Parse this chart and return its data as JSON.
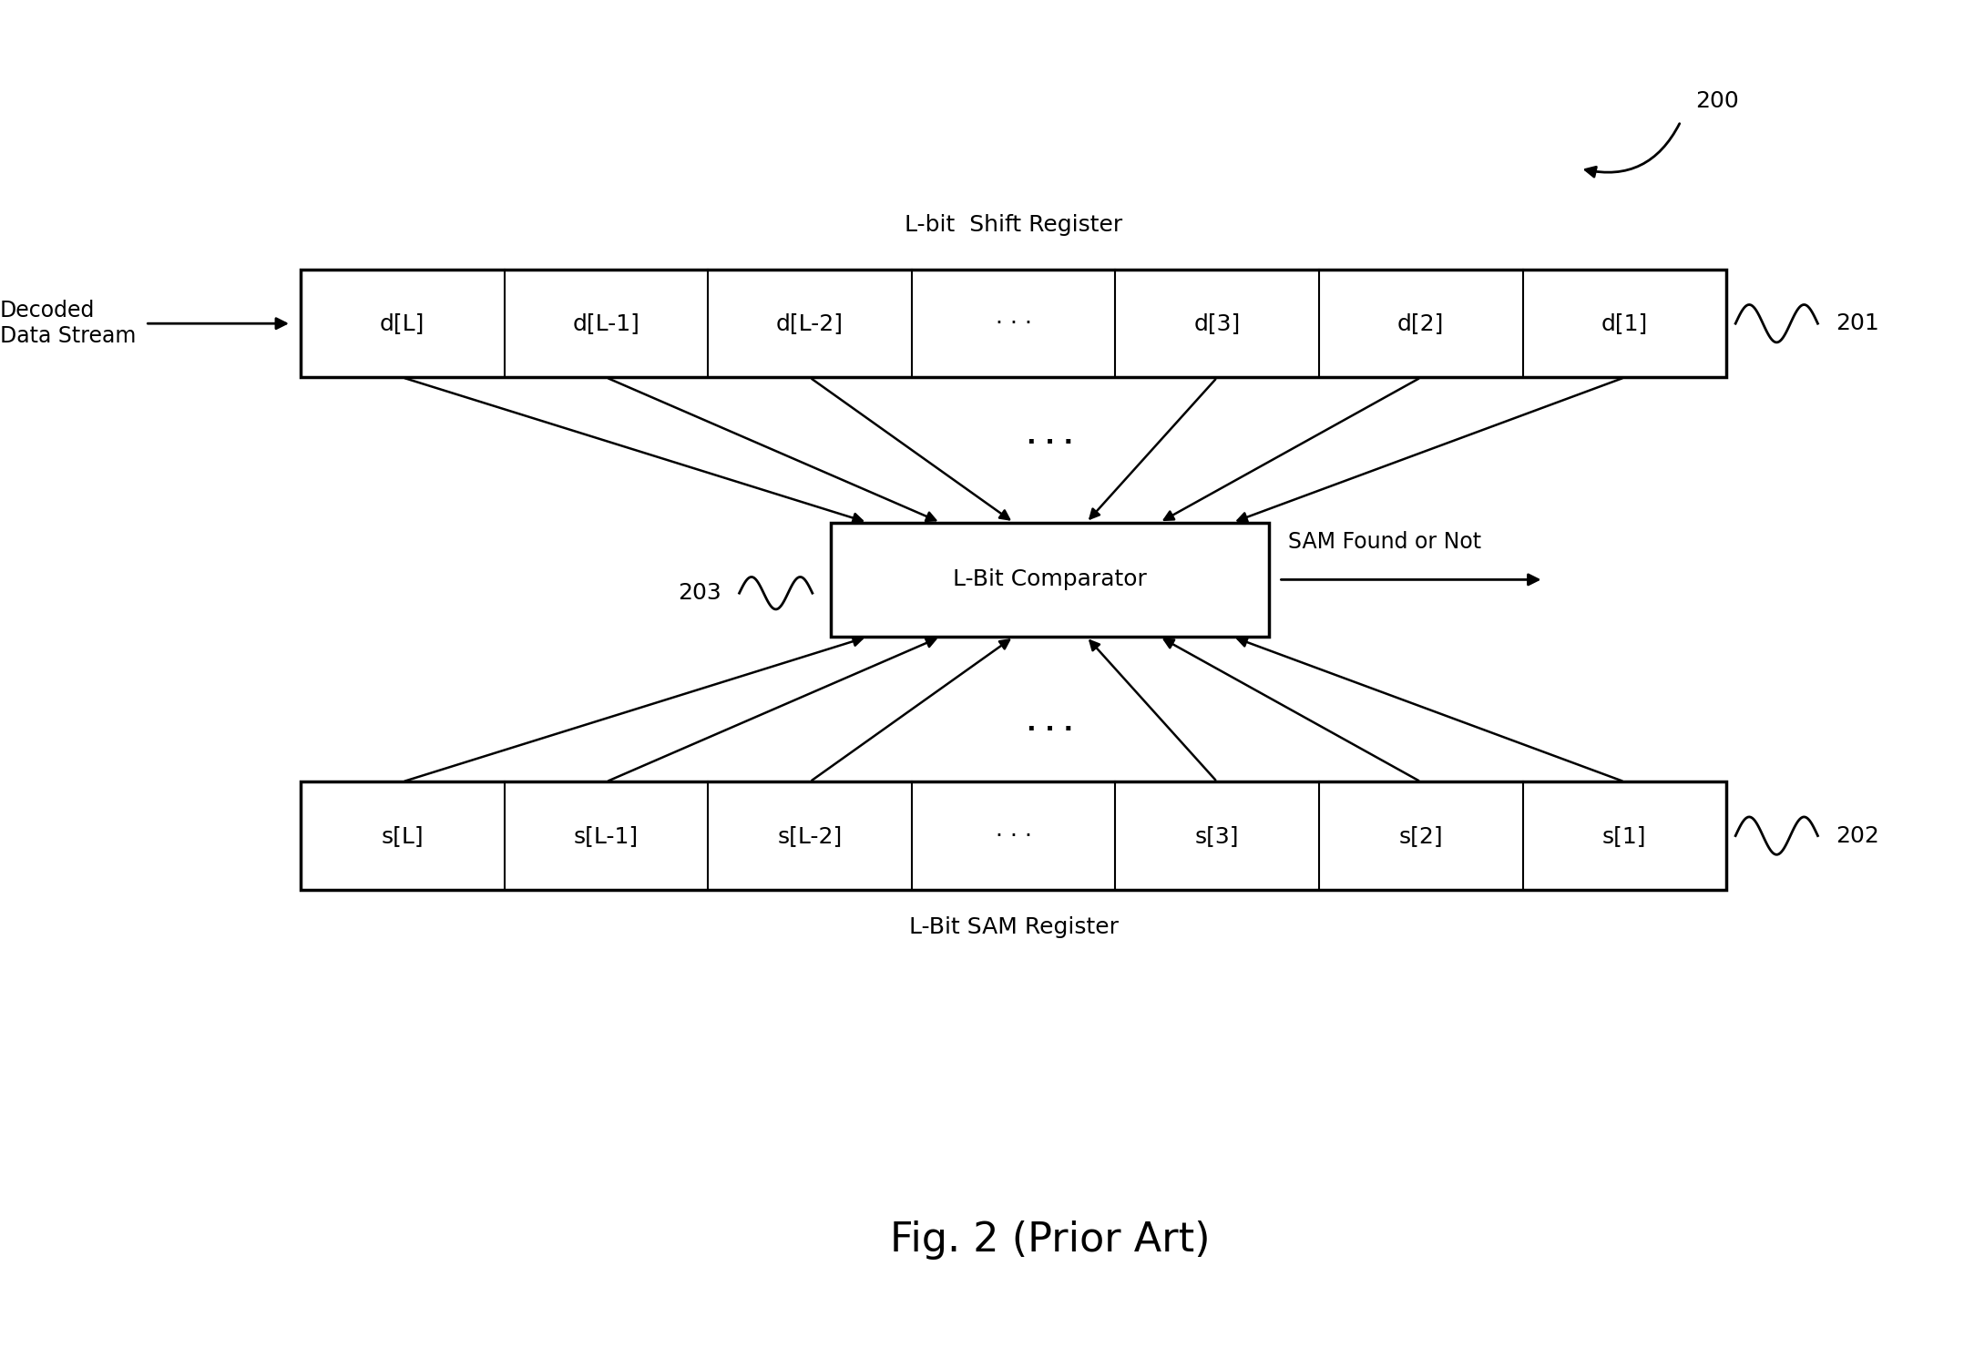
{
  "title": "Fig. 2 (Prior Art)",
  "title_fontsize": 32,
  "bg_color": "#ffffff",
  "text_color": "#000000",
  "shift_register_label": "L-bit  Shift Register",
  "sam_register_label": "L-Bit SAM Register",
  "comparator_label": "L-Bit Comparator",
  "shift_register_cells": [
    "d[L]",
    "d[L-1]",
    "d[L-2]",
    "· · ·",
    "d[3]",
    "d[2]",
    "d[1]"
  ],
  "sam_register_cells": [
    "s[L]",
    "s[L-1]",
    "s[L-2]",
    "· · ·",
    "s[3]",
    "s[2]",
    "s[1]"
  ],
  "label_200": "200",
  "label_201": "201",
  "label_202": "202",
  "label_203": "203",
  "decoded_label": "Decoded\nData Stream",
  "output_label": "SAM Found or Not",
  "font_size_cells": 18,
  "font_size_labels": 17,
  "font_size_register_labels": 18,
  "font_size_ref": 18
}
